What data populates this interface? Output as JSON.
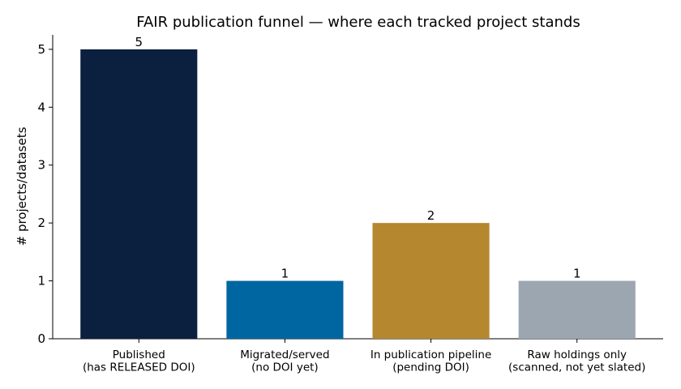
{
  "chart_data": {
    "type": "bar",
    "title": "FAIR publication funnel — where each tracked project stands",
    "y_label": "# projects/datasets",
    "categories": [
      "Published\n(has RELEASED DOI)",
      "Migrated/served\n(no DOI yet)",
      "In publication pipeline\n(pending DOI)",
      "Raw holdings only\n(scanned, not yet slated)"
    ],
    "values": [
      5,
      1,
      2,
      1
    ],
    "colors": [
      "#0b1f3f",
      "#0066a1",
      "#b5872e",
      "#9ca6b1"
    ],
    "ylim": [
      0,
      5.25
    ],
    "yticks": [
      0,
      1,
      2,
      3,
      4,
      5
    ],
    "grid": false
  }
}
